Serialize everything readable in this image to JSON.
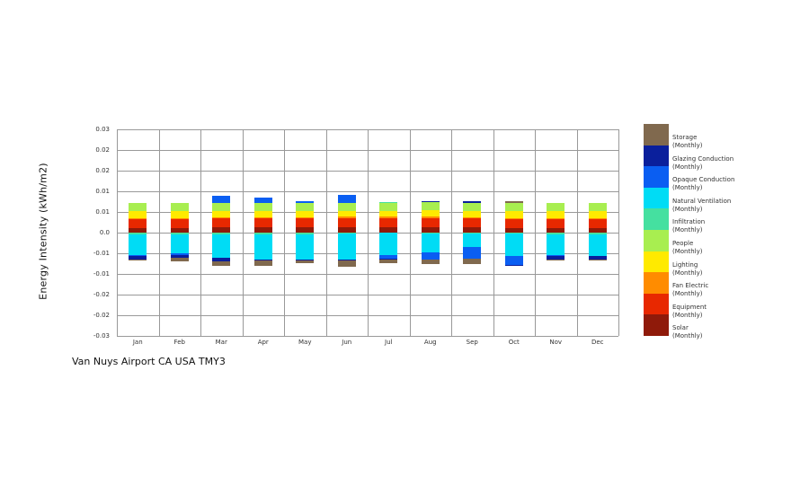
{
  "footer": {
    "title": "Van Nuys Airport CA USA TMY3"
  },
  "axes": {
    "y_title": "Energy Intensity (kWh/m2)",
    "y_tick_labels": [
      "0.03",
      "0.02",
      "0.02",
      "0.01",
      "0.01",
      "0.0",
      "-0.01",
      "-0.01",
      "-0.02",
      "-0.02",
      "-0.03"
    ],
    "grid_color": "#999999"
  },
  "chart_data": {
    "type": "bar",
    "stacked": true,
    "title": "Van Nuys Airport CA USA TMY3",
    "ylabel": "Energy Intensity (kWh/m2)",
    "ylim": [
      -0.03,
      0.03
    ],
    "ytick_step": 0.006,
    "grid": true,
    "legend_position": "right",
    "categories": [
      "Jan",
      "Feb",
      "Mar",
      "Apr",
      "May",
      "Jun",
      "Jul",
      "Aug",
      "Sep",
      "Oct",
      "Nov",
      "Dec"
    ],
    "series": [
      {
        "name": "Storage",
        "qualifier": "(Monthly)",
        "color": "#80694e",
        "values": [
          -0.0003,
          -0.0009,
          -0.0013,
          -0.0016,
          -0.0009,
          -0.002,
          -0.0013,
          -0.0014,
          -0.0016,
          0.0004,
          -0.0004,
          -0.0003
        ]
      },
      {
        "name": "Glazing Conduction",
        "qualifier": "(Monthly)",
        "color": "#0a1f9c",
        "values": [
          -0.001,
          -0.001,
          -0.001,
          -0.0002,
          -0.0002,
          -0.0001,
          -0.0002,
          0.0004,
          0.0005,
          -0.0001,
          -0.0008,
          -0.001
        ]
      },
      {
        "name": "Opaque Conduction",
        "qualifier": "(Monthly)",
        "color": "#0a5ef2",
        "values": [
          -0.0004,
          -0.0003,
          0.002,
          0.0015,
          0.0005,
          0.0023,
          -0.0009,
          -0.0019,
          -0.0033,
          -0.0026,
          -0.0004,
          -0.0002
        ]
      },
      {
        "name": "Natural Ventilation",
        "qualifier": "(Monthly)",
        "color": "#00dcf5",
        "values": [
          -0.006,
          -0.0056,
          -0.0069,
          -0.0073,
          -0.0074,
          -0.0077,
          -0.0066,
          -0.0056,
          -0.004,
          -0.0066,
          -0.0061,
          -0.0063
        ]
      },
      {
        "name": "Infiltration",
        "qualifier": "(Monthly)",
        "color": "#45e0a0",
        "values": [
          -0.0005,
          -0.0005,
          -0.0005,
          -0.0005,
          -0.0004,
          -0.0002,
          0.0003,
          -0.0002,
          -0.0002,
          -0.0003,
          -0.0004,
          -0.0004
        ]
      },
      {
        "name": "People",
        "qualifier": "(Monthly)",
        "color": "#a8ee50",
        "values": [
          0.0024,
          0.0024,
          0.0024,
          0.0024,
          0.0024,
          0.0024,
          0.0024,
          0.0024,
          0.0024,
          0.0024,
          0.0024,
          0.0024
        ]
      },
      {
        "name": "Lighting",
        "qualifier": "(Monthly)",
        "color": "#ffea00",
        "values": [
          0.0021,
          0.002,
          0.0019,
          0.0018,
          0.0018,
          0.0017,
          0.0017,
          0.0018,
          0.0018,
          0.002,
          0.0021,
          0.0022
        ]
      },
      {
        "name": "Fan Electric",
        "qualifier": "(Monthly)",
        "color": "#ff8c00",
        "values": [
          0.0003,
          0.0003,
          0.0003,
          0.0003,
          0.0003,
          0.0004,
          0.0004,
          0.0004,
          0.0004,
          0.0003,
          0.0003,
          0.0003
        ]
      },
      {
        "name": "Equipment",
        "qualifier": "(Monthly)",
        "color": "#e82800",
        "values": [
          0.0026,
          0.0026,
          0.0026,
          0.0026,
          0.0026,
          0.0026,
          0.0026,
          0.0026,
          0.0026,
          0.0026,
          0.0026,
          0.0026
        ]
      },
      {
        "name": "Solar",
        "qualifier": "(Monthly)",
        "color": "#8f1a0a",
        "values": [
          0.0013,
          0.0014,
          0.0015,
          0.0015,
          0.0015,
          0.0016,
          0.0016,
          0.0016,
          0.0015,
          0.0014,
          0.0013,
          0.0012
        ]
      }
    ]
  }
}
